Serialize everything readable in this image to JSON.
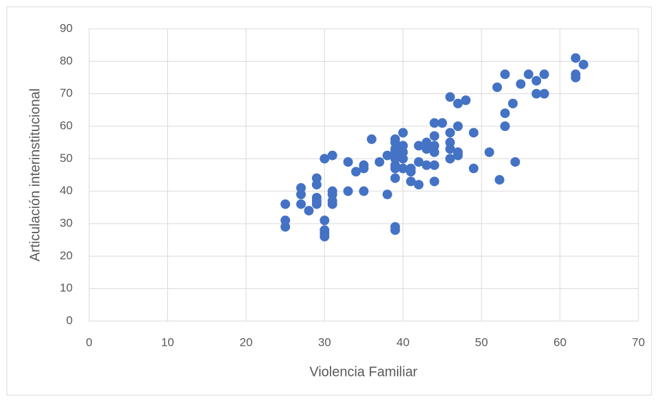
{
  "chart_data": {
    "type": "scatter",
    "x_label": "Violencia Familiar",
    "y_label": "Articulación interinstitucional",
    "color": "#4472c4",
    "grid": true,
    "xlim": [
      0,
      70
    ],
    "xticks": [
      0,
      10,
      20,
      30,
      40,
      50,
      60,
      70
    ],
    "ylim": [
      0,
      90
    ],
    "yticks": [
      0,
      10,
      20,
      30,
      40,
      50,
      60,
      70,
      80,
      90
    ],
    "x": [
      25,
      25,
      25,
      27,
      27,
      27,
      28,
      29,
      29,
      29,
      29,
      29,
      30,
      30,
      30,
      30,
      30,
      31,
      31,
      31,
      31,
      31,
      33,
      33,
      34,
      35,
      35,
      35,
      36,
      37,
      38,
      38,
      39,
      39,
      39,
      39,
      39,
      39,
      39,
      39,
      39,
      39,
      39,
      40,
      40,
      40,
      40,
      40,
      41,
      41,
      41,
      42,
      42,
      42,
      43,
      43,
      43,
      43,
      44,
      44,
      44,
      44,
      44,
      44,
      45,
      46,
      46,
      46,
      46,
      46,
      47,
      47,
      47,
      47,
      48,
      49,
      49,
      51,
      52,
      52.3,
      53,
      53,
      53,
      54,
      54.3,
      55,
      56,
      57,
      57,
      58,
      58,
      62,
      62,
      62,
      63
    ],
    "y": [
      36,
      31,
      29,
      41,
      39,
      36,
      34,
      44,
      42,
      38,
      37,
      36,
      50,
      31,
      28,
      27,
      26,
      51,
      40,
      39,
      37,
      36,
      49,
      40,
      46,
      48,
      47,
      40,
      56,
      49,
      51,
      39,
      56,
      55,
      53,
      52,
      51,
      50,
      48,
      47,
      44,
      29,
      28,
      58,
      54,
      52,
      50,
      47,
      47,
      46,
      43,
      54,
      49,
      42,
      55,
      54,
      53,
      48,
      61,
      57,
      54,
      52,
      48,
      43,
      61,
      69,
      58,
      55,
      53,
      50,
      67,
      60,
      52,
      51,
      68,
      58,
      47,
      52,
      72,
      43.5,
      76,
      64,
      60,
      67,
      49,
      73,
      76,
      74,
      70,
      76,
      70,
      81,
      76,
      75,
      79
    ]
  }
}
